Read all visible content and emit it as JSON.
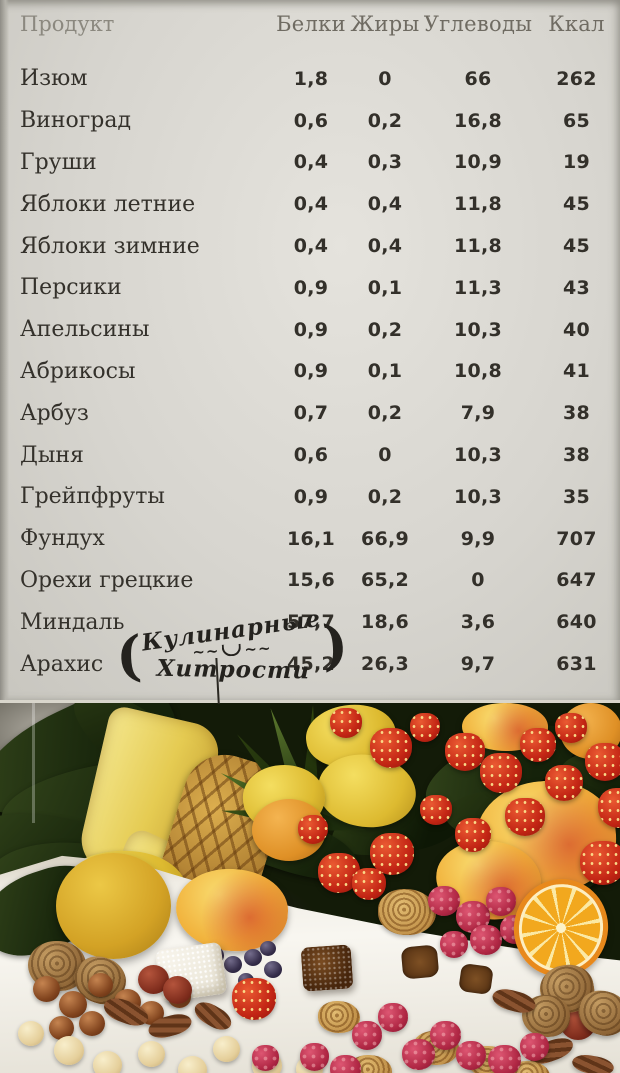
{
  "table": {
    "columns": [
      "Продукт",
      "Белки",
      "Жиры",
      "Углеводы",
      "Ккал"
    ],
    "rows": [
      {
        "product": "Изюм",
        "values": [
          "1,8",
          "0",
          "66",
          "262"
        ]
      },
      {
        "product": "Виноград",
        "values": [
          "0,6",
          "0,2",
          "16,8",
          "65"
        ]
      },
      {
        "product": "Груши",
        "values": [
          "0,4",
          "0,3",
          "10,9",
          "19"
        ]
      },
      {
        "product": "Яблоки летние",
        "values": [
          "0,4",
          "0,4",
          "11,8",
          "45"
        ]
      },
      {
        "product": "Яблоки зимние",
        "values": [
          "0,4",
          "0,4",
          "11,8",
          "45"
        ]
      },
      {
        "product": "Персики",
        "values": [
          "0,9",
          "0,1",
          "11,3",
          "43"
        ]
      },
      {
        "product": "Апельсины",
        "values": [
          "0,9",
          "0,2",
          "10,3",
          "40"
        ]
      },
      {
        "product": "Абрикосы",
        "values": [
          "0,9",
          "0,1",
          "10,8",
          "41"
        ]
      },
      {
        "product": "Арбуз",
        "values": [
          "0,7",
          "0,2",
          "7,9",
          "38"
        ]
      },
      {
        "product": "Дыня",
        "values": [
          "0,6",
          "0",
          "10,3",
          "38"
        ]
      },
      {
        "product": "Грейпфруты",
        "values": [
          "0,9",
          "0,2",
          "10,3",
          "35"
        ]
      },
      {
        "product": "Фундух",
        "values": [
          "16,1",
          "66,9",
          "9,9",
          "707"
        ]
      },
      {
        "product": "Орехи грецкие",
        "values": [
          "15,6",
          "65,2",
          "0",
          "647"
        ]
      },
      {
        "product": "Миндаль",
        "values": [
          "57,7",
          "18,6",
          "3,6",
          "640"
        ]
      },
      {
        "product": "Арахис",
        "values": [
          "45,2",
          "26,3",
          "9,7",
          "631"
        ]
      }
    ]
  },
  "watermark": {
    "line1": "Кулинарные",
    "line2": "Хитрости",
    "paren_open": "(",
    "paren_close": ")",
    "squiggle": "~~"
  },
  "photo": {
    "items": [
      "pineapple",
      "pineapple-crown",
      "lemons",
      "oranges",
      "peaches",
      "strawberries",
      "raspberries",
      "blueberries",
      "walnuts",
      "hazelnuts",
      "pecans",
      "macadamias",
      "turkish-delight-cubes",
      "orange-half-slice",
      "green-leaves",
      "white-tablecloth"
    ]
  },
  "colors": {
    "paper": "#d8d6d0",
    "ink": "#34312b",
    "header_ink": "#6f6b62",
    "photo_background": "#131b08",
    "cloth": "#f2efe8",
    "accent_red": "#c32514",
    "accent_yellow": "#e5cb52",
    "accent_orange": "#e8891c"
  }
}
